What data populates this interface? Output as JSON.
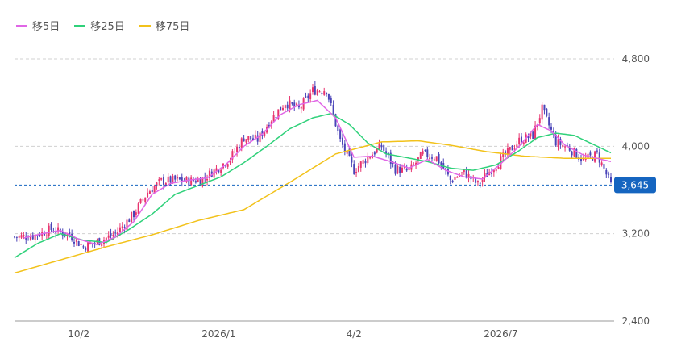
{
  "legend": {
    "items": [
      {
        "label": "移5日",
        "color": "#e066e6"
      },
      {
        "label": "移25日",
        "color": "#2fd17a"
      },
      {
        "label": "移75日",
        "color": "#f2c21b"
      }
    ]
  },
  "last_price_label": "3,645",
  "colors": {
    "up": "#e8346f",
    "down": "#4a44b8",
    "last_line": "#1565c0",
    "grid": "#d0d0d0"
  },
  "chart_data": {
    "type": "candlestick",
    "title": "",
    "xlabel": "",
    "ylabel": "",
    "ylim": [
      2400,
      4800
    ],
    "y_ticks": [
      2400,
      3200,
      4000,
      4800
    ],
    "y_tick_labels": [
      "2,400",
      "3,200",
      "4,000",
      "4,800"
    ],
    "x_ticks": [
      {
        "index": 28,
        "label": "10/2"
      },
      {
        "index": 89,
        "label": "2026/1"
      },
      {
        "index": 148,
        "label": "4/2"
      },
      {
        "index": 212,
        "label": "2026/7"
      }
    ],
    "grid": true,
    "last_price": 3645,
    "close_path": [
      [
        0,
        3170
      ],
      [
        8,
        3180
      ],
      [
        16,
        3240
      ],
      [
        24,
        3190
      ],
      [
        30,
        3080
      ],
      [
        38,
        3140
      ],
      [
        44,
        3200
      ],
      [
        52,
        3380
      ],
      [
        58,
        3580
      ],
      [
        64,
        3680
      ],
      [
        70,
        3690
      ],
      [
        76,
        3680
      ],
      [
        82,
        3700
      ],
      [
        88,
        3790
      ],
      [
        94,
        3890
      ],
      [
        100,
        4080
      ],
      [
        106,
        4060
      ],
      [
        112,
        4250
      ],
      [
        118,
        4400
      ],
      [
        124,
        4340
      ],
      [
        130,
        4510
      ],
      [
        136,
        4520
      ],
      [
        142,
        4050
      ],
      [
        148,
        3780
      ],
      [
        154,
        3900
      ],
      [
        160,
        4000
      ],
      [
        166,
        3790
      ],
      [
        172,
        3770
      ],
      [
        178,
        3930
      ],
      [
        184,
        3900
      ],
      [
        190,
        3690
      ],
      [
        196,
        3760
      ],
      [
        202,
        3650
      ],
      [
        208,
        3790
      ],
      [
        214,
        3920
      ],
      [
        220,
        4050
      ],
      [
        226,
        4100
      ],
      [
        230,
        4340
      ],
      [
        236,
        4040
      ],
      [
        242,
        3980
      ],
      [
        248,
        3870
      ],
      [
        254,
        3930
      ],
      [
        260,
        3650
      ]
    ],
    "ma_paths": {
      "ma5": [
        [
          4,
          3160
        ],
        [
          12,
          3200
        ],
        [
          20,
          3230
        ],
        [
          28,
          3150
        ],
        [
          36,
          3100
        ],
        [
          44,
          3170
        ],
        [
          52,
          3310
        ],
        [
          60,
          3560
        ],
        [
          68,
          3660
        ],
        [
          76,
          3690
        ],
        [
          84,
          3710
        ],
        [
          92,
          3830
        ],
        [
          100,
          4000
        ],
        [
          108,
          4110
        ],
        [
          116,
          4290
        ],
        [
          124,
          4380
        ],
        [
          132,
          4420
        ],
        [
          140,
          4260
        ],
        [
          148,
          3900
        ],
        [
          156,
          3910
        ],
        [
          164,
          3860
        ],
        [
          172,
          3800
        ],
        [
          180,
          3880
        ],
        [
          188,
          3780
        ],
        [
          196,
          3720
        ],
        [
          204,
          3700
        ],
        [
          212,
          3840
        ],
        [
          220,
          4000
        ],
        [
          228,
          4200
        ],
        [
          234,
          4140
        ],
        [
          240,
          4010
        ],
        [
          248,
          3920
        ],
        [
          256,
          3880
        ],
        [
          260,
          3860
        ]
      ],
      "ma25": [
        [
          0,
          2980
        ],
        [
          10,
          3110
        ],
        [
          20,
          3200
        ],
        [
          30,
          3140
        ],
        [
          40,
          3120
        ],
        [
          50,
          3240
        ],
        [
          60,
          3380
        ],
        [
          70,
          3560
        ],
        [
          80,
          3640
        ],
        [
          90,
          3720
        ],
        [
          100,
          3850
        ],
        [
          110,
          4000
        ],
        [
          120,
          4160
        ],
        [
          130,
          4260
        ],
        [
          138,
          4300
        ],
        [
          146,
          4200
        ],
        [
          154,
          4030
        ],
        [
          162,
          3930
        ],
        [
          170,
          3900
        ],
        [
          180,
          3860
        ],
        [
          190,
          3800
        ],
        [
          200,
          3780
        ],
        [
          210,
          3830
        ],
        [
          220,
          3960
        ],
        [
          228,
          4080
        ],
        [
          236,
          4120
        ],
        [
          244,
          4100
        ],
        [
          252,
          4020
        ],
        [
          260,
          3940
        ]
      ],
      "ma75": [
        [
          0,
          2840
        ],
        [
          20,
          2960
        ],
        [
          40,
          3080
        ],
        [
          60,
          3190
        ],
        [
          80,
          3320
        ],
        [
          100,
          3420
        ],
        [
          120,
          3670
        ],
        [
          140,
          3930
        ],
        [
          160,
          4040
        ],
        [
          176,
          4050
        ],
        [
          190,
          4010
        ],
        [
          206,
          3950
        ],
        [
          222,
          3910
        ],
        [
          240,
          3890
        ],
        [
          260,
          3890
        ]
      ]
    },
    "n_candles": 261
  }
}
